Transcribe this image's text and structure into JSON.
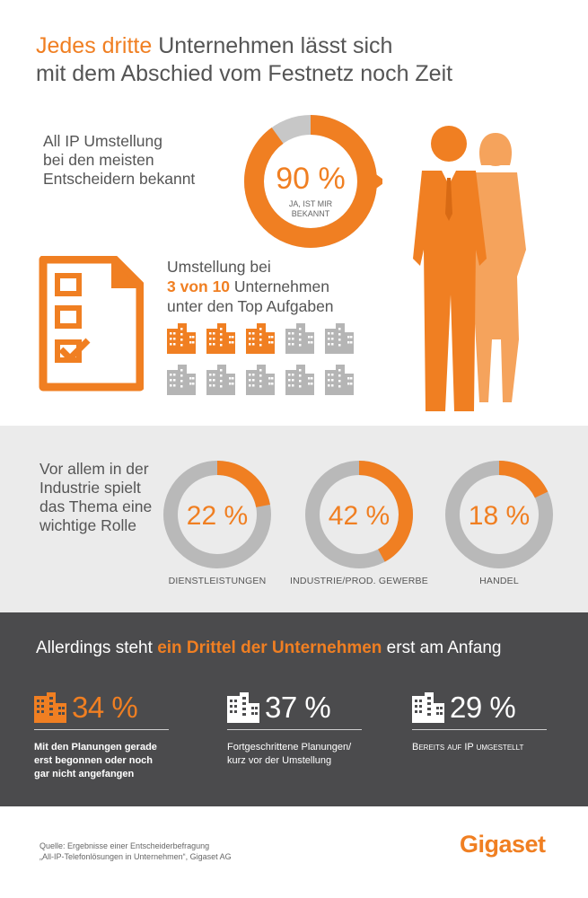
{
  "title": {
    "part1": "Jedes dritte",
    "part2": " Unternehmen lässt sich",
    "line2": "mit dem Abschied vom Festnetz noch Zeit"
  },
  "awareness": {
    "line1": "All IP Umstellung",
    "line2": "bei den meisten",
    "line3": "Entscheidern bekannt",
    "value_label": "90 %",
    "caption1": "JA, IST MIR",
    "caption2": "BEKANNT"
  },
  "top_tasks": {
    "line1": "Umstellung bei",
    "highlight": "3 von 10",
    "line2_rest": " Unternehmen",
    "line3": "unter den Top Aufgaben"
  },
  "industry": {
    "line1": "Vor allem in der",
    "line2": "Industrie spielt",
    "line3": "das Thema eine",
    "line4": "wichtige Rolle"
  },
  "adoption": {
    "headline_pre": "Allerdings steht ",
    "headline_bold": "ein Drittel der Unternehmen",
    "headline_post": " erst am Anfang",
    "stats": [
      {
        "value": "34 %",
        "desc1": "Mit den Planungen gerade",
        "desc2": "erst begonnen oder noch",
        "desc3": "gar nicht angefangen"
      },
      {
        "value": "37 %",
        "desc1": "Fortgeschrittene Planungen/",
        "desc2": "kurz vor der Umstellung",
        "desc3": ""
      },
      {
        "value": "29 %",
        "desc1": "Bereits auf IP umgestellt",
        "desc2": "",
        "desc3": ""
      }
    ]
  },
  "source": {
    "line1": "Quelle: Ergebnisse einer Entscheiderbefragung",
    "line2": "„All-IP-Telefonlösungen in Unternehmen“, Gigaset AG"
  },
  "logo": "Gigaset",
  "colors": {
    "accent": "#f07f22",
    "gray": "#b5b5b5",
    "dark": "#4b4b4d",
    "band": "#ebebeb"
  },
  "chart_data": [
    {
      "type": "pie",
      "categories": [
        "Ja, ist mir bekannt",
        ""
      ],
      "values": [
        90,
        10
      ]
    },
    {
      "type": "bar",
      "title": "",
      "categories": [
        "Unternehmen mit Umstellung unter den Top Aufgaben",
        "andere"
      ],
      "values": [
        3,
        7
      ]
    },
    {
      "type": "pie",
      "categories": [
        "DIENSTLEISTUNGEN",
        "INDUSTRIE/PROD. GEWERBE",
        "HANDEL"
      ],
      "values": [
        22,
        42,
        18
      ],
      "labels": [
        "22 %",
        "42 %",
        "18 %"
      ]
    },
    {
      "type": "bar",
      "categories": [
        "Mit den Planungen gerade erst begonnen oder noch gar nicht angefangen",
        "Fortgeschrittene Planungen/kurz vor der Umstellung",
        "Bereits auf IP umgestellt"
      ],
      "values": [
        34,
        37,
        29
      ]
    }
  ]
}
